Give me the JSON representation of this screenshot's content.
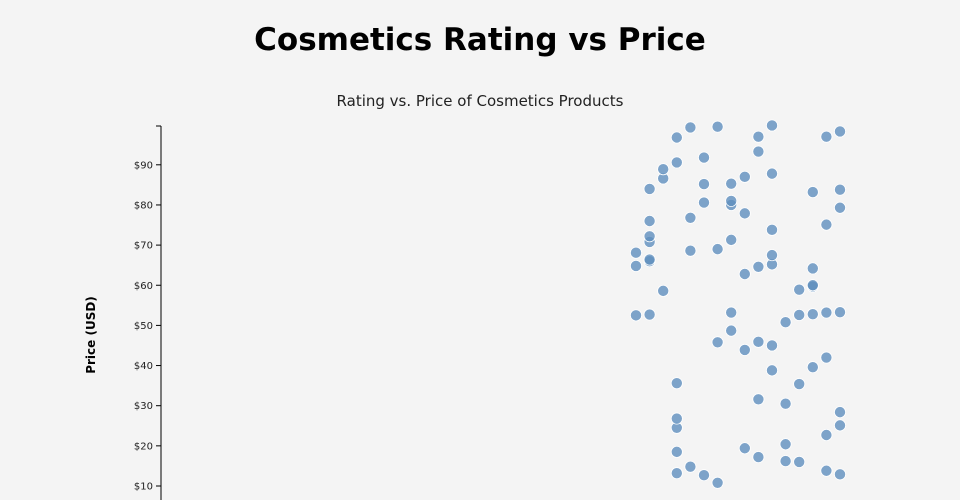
{
  "header": {
    "title": "Cosmetics Rating vs Price"
  },
  "chart_data": {
    "type": "scatter",
    "title": "Rating vs. Price of Cosmetics Products",
    "ylabel": "Price (USD)",
    "xlabel": "",
    "xlim": [
      0,
      4.5
    ],
    "ylim": [
      8,
      100
    ],
    "yticks": [
      10,
      20,
      30,
      40,
      50,
      60,
      70,
      80,
      90
    ],
    "ytick_labels": [
      "$10",
      "$20",
      "$30",
      "$40",
      "$50",
      "$60",
      "$70",
      "$80",
      "$90"
    ],
    "grid": false,
    "color": "#5f8fbe",
    "series": [
      {
        "points": [
          [
            3.55,
            52.5
          ],
          [
            3.55,
            64.8
          ],
          [
            3.55,
            68.1
          ],
          [
            3.6,
            52.7
          ],
          [
            3.6,
            66.0
          ],
          [
            3.6,
            66.4
          ],
          [
            3.6,
            70.8
          ],
          [
            3.6,
            72.2
          ],
          [
            3.6,
            76.0
          ],
          [
            3.6,
            84.0
          ],
          [
            3.65,
            58.6
          ],
          [
            3.65,
            86.6
          ],
          [
            3.65,
            88.9
          ],
          [
            3.7,
            13.2
          ],
          [
            3.7,
            18.5
          ],
          [
            3.7,
            24.5
          ],
          [
            3.7,
            26.8
          ],
          [
            3.7,
            35.6
          ],
          [
            3.7,
            90.6
          ],
          [
            3.7,
            96.8
          ],
          [
            3.75,
            14.8
          ],
          [
            3.75,
            68.6
          ],
          [
            3.75,
            76.8
          ],
          [
            3.75,
            99.3
          ],
          [
            3.8,
            12.7
          ],
          [
            3.8,
            80.6
          ],
          [
            3.8,
            85.2
          ],
          [
            3.8,
            91.8
          ],
          [
            3.85,
            10.8
          ],
          [
            3.85,
            45.8
          ],
          [
            3.85,
            69.0
          ],
          [
            3.85,
            99.5
          ],
          [
            3.9,
            48.7
          ],
          [
            3.9,
            53.2
          ],
          [
            3.9,
            71.3
          ],
          [
            3.9,
            80.0
          ],
          [
            3.9,
            81.0
          ],
          [
            3.9,
            85.3
          ],
          [
            3.95,
            19.4
          ],
          [
            3.95,
            43.9
          ],
          [
            3.95,
            62.8
          ],
          [
            3.95,
            77.9
          ],
          [
            3.95,
            87.0
          ],
          [
            4.0,
            17.2
          ],
          [
            4.0,
            31.6
          ],
          [
            4.0,
            45.9
          ],
          [
            4.0,
            64.6
          ],
          [
            4.0,
            93.3
          ],
          [
            4.0,
            97.0
          ],
          [
            4.05,
            38.8
          ],
          [
            4.05,
            45.0
          ],
          [
            4.05,
            65.2
          ],
          [
            4.05,
            67.5
          ],
          [
            4.05,
            73.8
          ],
          [
            4.05,
            87.8
          ],
          [
            4.05,
            99.8
          ],
          [
            4.1,
            16.2
          ],
          [
            4.1,
            20.4
          ],
          [
            4.1,
            30.5
          ],
          [
            4.1,
            50.8
          ],
          [
            4.15,
            16.0
          ],
          [
            4.15,
            35.4
          ],
          [
            4.15,
            52.6
          ],
          [
            4.15,
            58.9
          ],
          [
            4.2,
            39.6
          ],
          [
            4.2,
            52.8
          ],
          [
            4.2,
            59.7
          ],
          [
            4.2,
            60.0
          ],
          [
            4.2,
            64.2
          ],
          [
            4.2,
            83.2
          ],
          [
            4.25,
            13.8
          ],
          [
            4.25,
            22.7
          ],
          [
            4.25,
            42.0
          ],
          [
            4.25,
            53.2
          ],
          [
            4.25,
            75.1
          ],
          [
            4.25,
            97.0
          ],
          [
            4.3,
            12.9
          ],
          [
            4.3,
            25.1
          ],
          [
            4.3,
            28.4
          ],
          [
            4.3,
            53.3
          ],
          [
            4.3,
            79.3
          ],
          [
            4.3,
            83.8
          ],
          [
            4.3,
            98.3
          ]
        ]
      }
    ]
  }
}
